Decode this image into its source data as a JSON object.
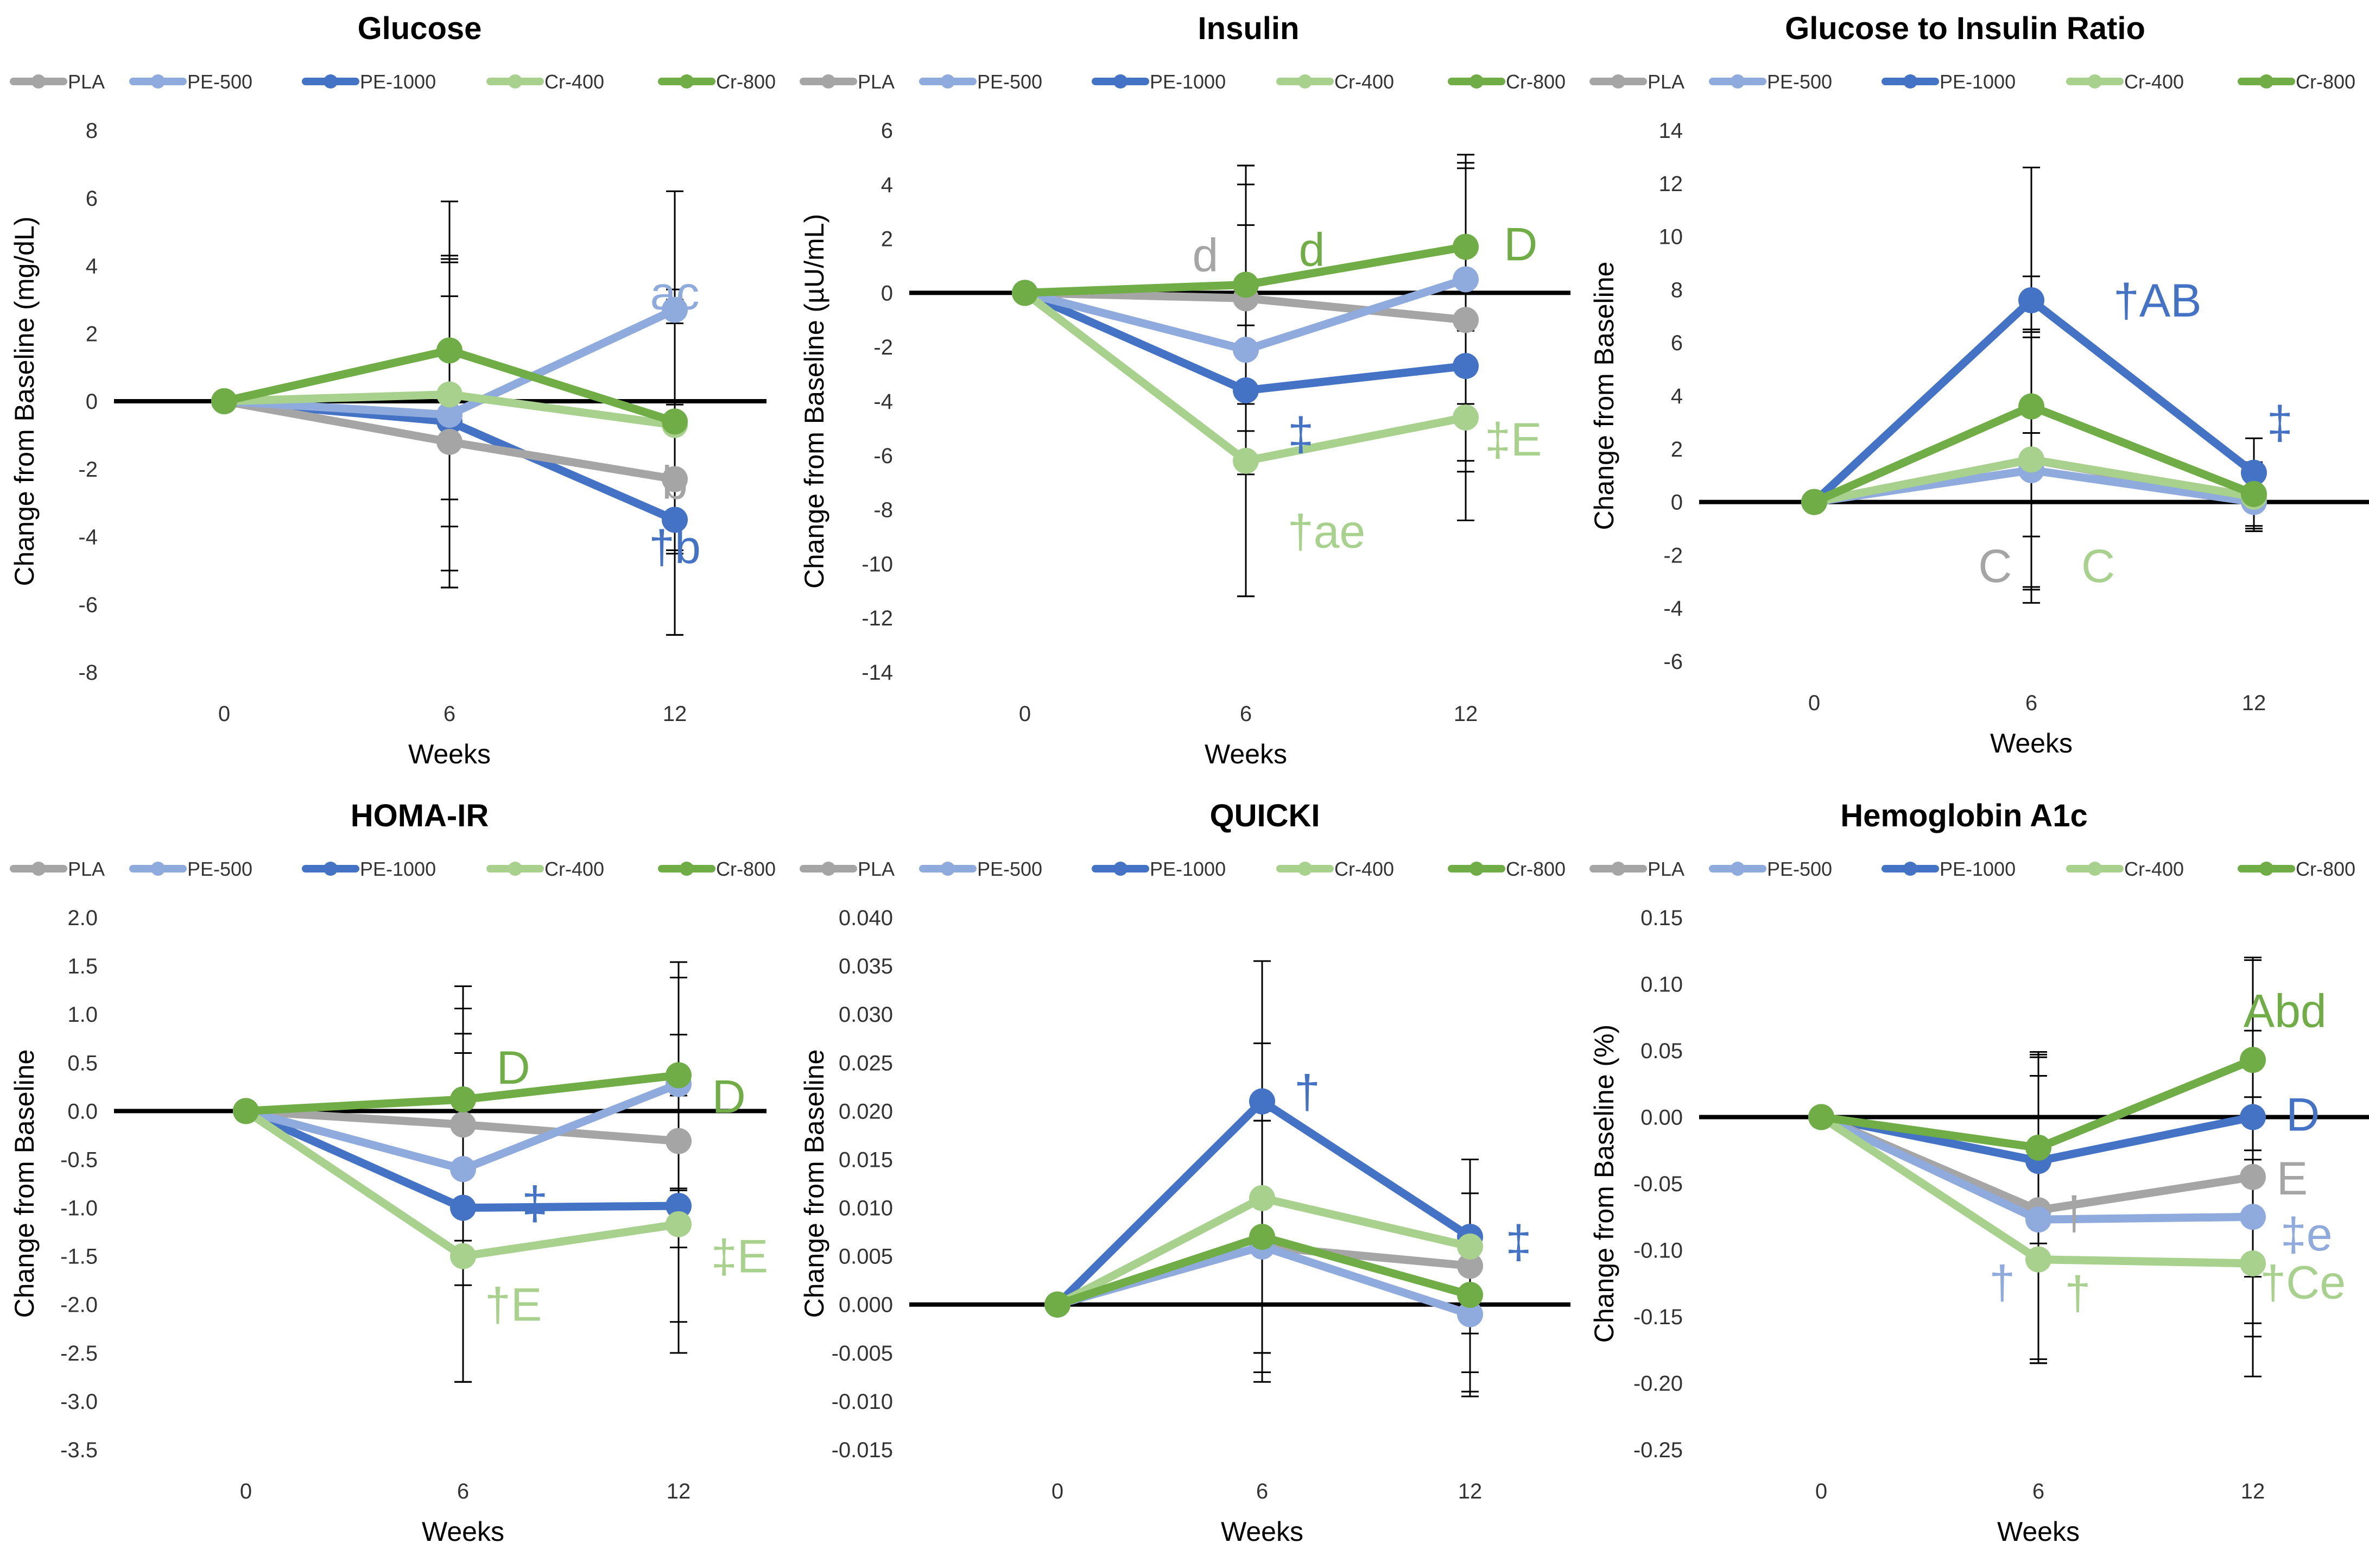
{
  "series_names": [
    "PLA",
    "PE-500",
    "PE-1000",
    "Cr-400",
    "Cr-800"
  ],
  "colors": {
    "PLA": "#A5A5A5",
    "PE-500": "#8FAADC",
    "PE-1000": "#4472C4",
    "Cr-400": "#A9D18E",
    "Cr-800": "#70AD47"
  },
  "chart_data": [
    {
      "type": "line",
      "title": "Glucose",
      "xlabel": "Weeks",
      "ylabel": "Change from Baseline (mg/dL)",
      "categories": [
        "0",
        "6",
        "12"
      ],
      "y_ticks": [
        8,
        6,
        4,
        2,
        0,
        -2,
        -4,
        -6,
        -8
      ],
      "ylim": [
        -8,
        8
      ],
      "decimals": 0,
      "series": [
        {
          "name": "PLA",
          "values": [
            0,
            -1.2,
            -2.3
          ],
          "errors": [
            0,
            4.3,
            4.6
          ]
        },
        {
          "name": "PE-500",
          "values": [
            0,
            -0.4,
            2.7
          ],
          "errors": [
            0,
            4.6,
            3.5
          ]
        },
        {
          "name": "PE-1000",
          "values": [
            0,
            -0.6,
            -3.5
          ],
          "errors": [
            0,
            4.9,
            3.4
          ]
        },
        {
          "name": "Cr-400",
          "values": [
            0,
            0.2,
            -0.7
          ],
          "errors": [
            0,
            3.9,
            3.7
          ]
        },
        {
          "name": "Cr-800",
          "values": [
            0,
            1.5,
            -0.6
          ],
          "errors": [
            0,
            4.4,
            3.9
          ]
        }
      ],
      "annotations": [
        {
          "text": "ac",
          "color": "#8FAADC",
          "x": 12,
          "y": 3.2
        },
        {
          "text": "b",
          "color": "#A5A5A5",
          "x": 12,
          "y": -2.4
        },
        {
          "text": "†b",
          "color": "#4472C4",
          "x": 12,
          "y": -4.3
        }
      ]
    },
    {
      "type": "line",
      "title": "Insulin",
      "xlabel": "Weeks",
      "ylabel": "Change from Baseline (µU/mL)",
      "categories": [
        "0",
        "6",
        "12"
      ],
      "y_ticks": [
        6,
        4,
        2,
        0,
        -2,
        -4,
        -6,
        -8,
        -10,
        -12,
        -14
      ],
      "ylim": [
        -14,
        6
      ],
      "decimals": 0,
      "series": [
        {
          "name": "PLA",
          "values": [
            0,
            -0.2,
            -1.0
          ],
          "errors": [
            0,
            4.9,
            5.6
          ]
        },
        {
          "name": "PE-500",
          "values": [
            0,
            -2.1,
            0.5
          ],
          "errors": [
            0,
            4.6,
            4.6
          ]
        },
        {
          "name": "PE-1000",
          "values": [
            0,
            -3.6,
            -2.7
          ],
          "errors": [
            0,
            7.6,
            3.5
          ]
        },
        {
          "name": "Cr-400",
          "values": [
            0,
            -6.2,
            -4.6
          ],
          "errors": [
            0,
            5.0,
            3.8
          ]
        },
        {
          "name": "Cr-800",
          "values": [
            0,
            0.3,
            1.7
          ],
          "errors": [
            0,
            4.4,
            3.1
          ]
        }
      ],
      "annotations": [
        {
          "text": "d",
          "color": "#A5A5A5",
          "x": 4.9,
          "y": 1.4
        },
        {
          "text": "d",
          "color": "#70AD47",
          "x": 7.8,
          "y": 1.6
        },
        {
          "text": "D",
          "color": "#70AD47",
          "x": 13.5,
          "y": 1.8
        },
        {
          "text": "‡",
          "color": "#4472C4",
          "x": 7.5,
          "y": -5.2
        },
        {
          "text": "‡E",
          "color": "#A9D18E",
          "x": 13.3,
          "y": -5.4
        },
        {
          "text": "†ae",
          "color": "#A9D18E",
          "x": 8.2,
          "y": -8.8
        }
      ]
    },
    {
      "type": "line",
      "title": "Glucose to Insulin Ratio",
      "xlabel": "Weeks",
      "ylabel": "Change from Baseline",
      "categories": [
        "0",
        "6",
        "12"
      ],
      "y_ticks": [
        14,
        12,
        10,
        8,
        6,
        4,
        2,
        0,
        -2,
        -4,
        -6
      ],
      "ylim": [
        -6,
        14
      ],
      "decimals": 0,
      "series": [
        {
          "name": "PLA",
          "values": [
            0,
            1.6,
            0.1
          ],
          "errors": [
            0,
            4.9,
            1.2
          ]
        },
        {
          "name": "PE-500",
          "values": [
            0,
            1.2,
            0.0
          ],
          "errors": [
            0,
            5.0,
            1.1
          ]
        },
        {
          "name": "PE-1000",
          "values": [
            0,
            7.6,
            1.1
          ],
          "errors": [
            0,
            5.0,
            1.3
          ]
        },
        {
          "name": "Cr-400",
          "values": [
            0,
            1.6,
            0.2
          ],
          "errors": [
            0,
            4.8,
            1.2
          ]
        },
        {
          "name": "Cr-800",
          "values": [
            0,
            3.6,
            0.3
          ],
          "errors": [
            0,
            4.9,
            1.2
          ]
        }
      ],
      "annotations": [
        {
          "text": "†AB",
          "color": "#4472C4",
          "x": 9.4,
          "y": 7.6
        },
        {
          "text": "‡",
          "color": "#4472C4",
          "x": 12.7,
          "y": 3.0
        },
        {
          "text": "C",
          "color": "#A5A5A5",
          "x": 5.0,
          "y": -2.4
        },
        {
          "text": "C",
          "color": "#A9D18E",
          "x": 7.8,
          "y": -2.4
        }
      ]
    },
    {
      "type": "line",
      "title": "HOMA-IR",
      "xlabel": "Weeks",
      "ylabel": "Change from Baseline",
      "categories": [
        "0",
        "6",
        "12"
      ],
      "y_ticks": [
        2.0,
        1.5,
        1.0,
        0.5,
        0.0,
        -0.5,
        -1.0,
        -1.5,
        -2.0,
        -2.5,
        -3.0,
        -3.5
      ],
      "ylim": [
        -3.5,
        2.0
      ],
      "decimals": 1,
      "series": [
        {
          "name": "PLA",
          "values": [
            0,
            -0.14,
            -0.31
          ],
          "errors": [
            0,
            1.2,
            1.1
          ]
        },
        {
          "name": "PE-500",
          "values": [
            0,
            -0.6,
            0.28
          ],
          "errors": [
            0,
            1.2,
            1.1
          ]
        },
        {
          "name": "PE-1000",
          "values": [
            0,
            -1.0,
            -0.98
          ],
          "errors": [
            0,
            1.8,
            1.2
          ]
        },
        {
          "name": "Cr-400",
          "values": [
            0,
            -1.5,
            -1.17
          ],
          "errors": [
            0,
            1.3,
            1.33
          ]
        },
        {
          "name": "Cr-800",
          "values": [
            0,
            0.12,
            0.37
          ],
          "errors": [
            0,
            1.17,
            1.17
          ]
        }
      ],
      "annotations": [
        {
          "text": "D",
          "color": "#70AD47",
          "x": 7.4,
          "y": 0.45
        },
        {
          "text": "D",
          "color": "#70AD47",
          "x": 13.4,
          "y": 0.15
        },
        {
          "text": "‡",
          "color": "#4472C4",
          "x": 8.0,
          "y": -0.95
        },
        {
          "text": "‡E",
          "color": "#A9D18E",
          "x": 13.7,
          "y": -1.5
        },
        {
          "text": "†E",
          "color": "#A9D18E",
          "x": 7.4,
          "y": -2.0
        }
      ]
    },
    {
      "type": "line",
      "title": "QUICKI",
      "xlabel": "Weeks",
      "ylabel": "Change from Baseline",
      "categories": [
        "0",
        "6",
        "12"
      ],
      "y_ticks": [
        0.04,
        0.035,
        0.03,
        0.025,
        0.02,
        0.015,
        0.01,
        0.005,
        0.0,
        -0.005,
        -0.01,
        -0.015
      ],
      "ylim": [
        -0.015,
        0.04
      ],
      "decimals": 3,
      "series": [
        {
          "name": "PLA",
          "values": [
            0,
            0.006,
            0.004
          ],
          "errors": [
            0,
            0.014,
            0.011
          ]
        },
        {
          "name": "PE-500",
          "values": [
            0,
            0.006,
            -0.001
          ],
          "errors": [
            0,
            0.013,
            0.008
          ]
        },
        {
          "name": "PE-1000",
          "values": [
            0,
            0.021,
            0.007
          ],
          "errors": [
            0,
            0.0145,
            0.008
          ]
        },
        {
          "name": "Cr-400",
          "values": [
            0,
            0.011,
            0.006
          ],
          "errors": [
            0,
            0.016,
            0.009
          ]
        },
        {
          "name": "Cr-800",
          "values": [
            0,
            0.007,
            0.001
          ],
          "errors": [
            0,
            0.012,
            0.0105
          ]
        }
      ],
      "annotations": [
        {
          "text": "†",
          "color": "#4472C4",
          "x": 7.3,
          "y": 0.022
        },
        {
          "text": "‡",
          "color": "#4472C4",
          "x": 13.4,
          "y": 0.0065
        }
      ]
    },
    {
      "type": "line",
      "title": "Hemoglobin A1c",
      "xlabel": "Weeks",
      "ylabel": "Change from Baseline (%)",
      "categories": [
        "0",
        "6",
        "12"
      ],
      "y_ticks": [
        0.15,
        0.1,
        0.05,
        0.0,
        -0.05,
        -0.1,
        -0.15,
        -0.2,
        -0.25
      ],
      "ylim": [
        -0.25,
        0.15
      ],
      "decimals": 2,
      "series": [
        {
          "name": "PLA",
          "values": [
            0,
            -0.07,
            -0.045
          ],
          "errors": [
            0,
            0.115,
            0.11
          ]
        },
        {
          "name": "PE-500",
          "values": [
            0,
            -0.077,
            -0.075
          ],
          "errors": [
            0,
            0.108,
            0.09
          ]
        },
        {
          "name": "PE-1000",
          "values": [
            0,
            -0.033,
            0.0
          ],
          "errors": [
            0,
            0.08,
            0.12
          ]
        },
        {
          "name": "Cr-400",
          "values": [
            0,
            -0.107,
            -0.11
          ],
          "errors": [
            0,
            0.075,
            0.085
          ]
        },
        {
          "name": "Cr-800",
          "values": [
            0,
            -0.023,
            0.043
          ],
          "errors": [
            0,
            0.072,
            0.075
          ]
        }
      ],
      "annotations": [
        {
          "text": "Abd",
          "color": "#70AD47",
          "x": 12.9,
          "y": 0.08
        },
        {
          "text": "D",
          "color": "#4472C4",
          "x": 13.4,
          "y": 0.002
        },
        {
          "text": "E",
          "color": "#A5A5A5",
          "x": 13.1,
          "y": -0.046
        },
        {
          "text": "‡e",
          "color": "#8FAADC",
          "x": 13.5,
          "y": -0.088
        },
        {
          "text": "†",
          "color": "#A5A5A5",
          "x": 7.0,
          "y": -0.072
        },
        {
          "text": "†",
          "color": "#8FAADC",
          "x": 5.0,
          "y": -0.124
        },
        {
          "text": "†",
          "color": "#A9D18E",
          "x": 7.1,
          "y": -0.132
        },
        {
          "text": "†Ce",
          "color": "#A9D18E",
          "x": 13.4,
          "y": -0.124
        }
      ]
    }
  ]
}
